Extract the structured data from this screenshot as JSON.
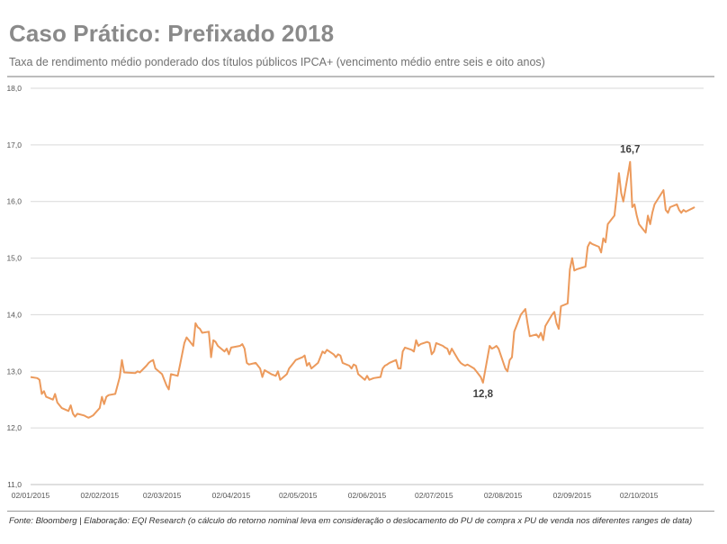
{
  "title": "Caso Prático: Prefixado 2018",
  "subtitle": "Taxa de rendimento médio ponderado dos títulos públicos IPCA+ (vencimento médio entre seis e oito anos)",
  "footnote": "Fonte: Bloomberg | Elaboração: EQI Research (o cálculo do retorno nominal leva em consideração o deslocamento do PU de compra x PU de venda nos diferentes ranges de data)",
  "colors": {
    "line": "#ec9a5c",
    "grid": "#d9d9d9",
    "axis": "#bfbfbf"
  },
  "chart_data": {
    "type": "line",
    "title": "Caso Prático: Prefixado 2018",
    "xlabel": "",
    "ylabel": "",
    "xlim": [
      "2015-01-02",
      "2015-10-31"
    ],
    "ylim": [
      11.0,
      18.0
    ],
    "grid": true,
    "legend": "none",
    "y_ticks": [
      "11,0",
      "12,0",
      "13,0",
      "14,0",
      "15,0",
      "16,0",
      "17,0",
      "18,0"
    ],
    "x_ticks": [
      {
        "date": "2015-01-02",
        "label": "02/01/2015"
      },
      {
        "date": "2015-02-02",
        "label": "02/02/2015"
      },
      {
        "date": "2015-03-02",
        "label": "02/03/2015"
      },
      {
        "date": "2015-04-02",
        "label": "02/04/2015"
      },
      {
        "date": "2015-05-02",
        "label": "02/05/2015"
      },
      {
        "date": "2015-06-02",
        "label": "02/06/2015"
      },
      {
        "date": "2015-07-02",
        "label": "02/07/2015"
      },
      {
        "date": "2015-08-02",
        "label": "02/08/2015"
      },
      {
        "date": "2015-09-02",
        "label": "02/09/2015"
      },
      {
        "date": "2015-10-02",
        "label": "02/10/2015"
      }
    ],
    "annotations": [
      {
        "date": "2015-07-24",
        "value": 12.8,
        "label": "12,8",
        "position": "below"
      },
      {
        "date": "2015-09-28",
        "value": 16.7,
        "label": "16,7",
        "position": "above"
      }
    ],
    "series": [
      {
        "points": [
          [
            "2015-01-02",
            12.9
          ],
          [
            "2015-01-05",
            12.88
          ],
          [
            "2015-01-06",
            12.85
          ],
          [
            "2015-01-07",
            12.6
          ],
          [
            "2015-01-08",
            12.65
          ],
          [
            "2015-01-09",
            12.55
          ],
          [
            "2015-01-12",
            12.5
          ],
          [
            "2015-01-13",
            12.6
          ],
          [
            "2015-01-14",
            12.45
          ],
          [
            "2015-01-15",
            12.4
          ],
          [
            "2015-01-16",
            12.35
          ],
          [
            "2015-01-19",
            12.3
          ],
          [
            "2015-01-20",
            12.4
          ],
          [
            "2015-01-21",
            12.25
          ],
          [
            "2015-01-22",
            12.2
          ],
          [
            "2015-01-23",
            12.25
          ],
          [
            "2015-01-26",
            12.22
          ],
          [
            "2015-01-27",
            12.2
          ],
          [
            "2015-01-28",
            12.18
          ],
          [
            "2015-01-29",
            12.2
          ],
          [
            "2015-01-30",
            12.22
          ],
          [
            "2015-02-02",
            12.35
          ],
          [
            "2015-02-03",
            12.55
          ],
          [
            "2015-02-04",
            12.42
          ],
          [
            "2015-02-05",
            12.55
          ],
          [
            "2015-02-06",
            12.58
          ],
          [
            "2015-02-09",
            12.6
          ],
          [
            "2015-02-10",
            12.75
          ],
          [
            "2015-02-11",
            12.9
          ],
          [
            "2015-02-12",
            13.2
          ],
          [
            "2015-02-13",
            12.98
          ],
          [
            "2015-02-18",
            12.97
          ],
          [
            "2015-02-19",
            13.0
          ],
          [
            "2015-02-20",
            12.98
          ],
          [
            "2015-02-23",
            13.1
          ],
          [
            "2015-02-24",
            13.15
          ],
          [
            "2015-02-25",
            13.18
          ],
          [
            "2015-02-26",
            13.2
          ],
          [
            "2015-02-27",
            13.05
          ],
          [
            "2015-03-02",
            12.95
          ],
          [
            "2015-03-03",
            12.85
          ],
          [
            "2015-03-04",
            12.75
          ],
          [
            "2015-03-05",
            12.68
          ],
          [
            "2015-03-06",
            12.95
          ],
          [
            "2015-03-09",
            12.92
          ],
          [
            "2015-03-10",
            13.1
          ],
          [
            "2015-03-11",
            13.3
          ],
          [
            "2015-03-12",
            13.5
          ],
          [
            "2015-03-13",
            13.6
          ],
          [
            "2015-03-16",
            13.45
          ],
          [
            "2015-03-17",
            13.85
          ],
          [
            "2015-03-18",
            13.78
          ],
          [
            "2015-03-19",
            13.75
          ],
          [
            "2015-03-20",
            13.68
          ],
          [
            "2015-03-23",
            13.7
          ],
          [
            "2015-03-24",
            13.25
          ],
          [
            "2015-03-25",
            13.55
          ],
          [
            "2015-03-26",
            13.52
          ],
          [
            "2015-03-27",
            13.45
          ],
          [
            "2015-03-30",
            13.35
          ],
          [
            "2015-03-31",
            13.4
          ],
          [
            "2015-04-01",
            13.3
          ],
          [
            "2015-04-02",
            13.42
          ],
          [
            "2015-04-06",
            13.45
          ],
          [
            "2015-04-07",
            13.48
          ],
          [
            "2015-04-08",
            13.4
          ],
          [
            "2015-04-09",
            13.15
          ],
          [
            "2015-04-10",
            13.12
          ],
          [
            "2015-04-13",
            13.15
          ],
          [
            "2015-04-14",
            13.1
          ],
          [
            "2015-04-15",
            13.05
          ],
          [
            "2015-04-16",
            12.9
          ],
          [
            "2015-04-17",
            13.02
          ],
          [
            "2015-04-20",
            12.95
          ],
          [
            "2015-04-22",
            12.92
          ],
          [
            "2015-04-23",
            13.0
          ],
          [
            "2015-04-24",
            12.85
          ],
          [
            "2015-04-27",
            12.95
          ],
          [
            "2015-04-28",
            13.05
          ],
          [
            "2015-04-29",
            13.1
          ],
          [
            "2015-04-30",
            13.15
          ],
          [
            "2015-05-01",
            13.2
          ],
          [
            "2015-05-04",
            13.25
          ],
          [
            "2015-05-05",
            13.28
          ],
          [
            "2015-05-06",
            13.1
          ],
          [
            "2015-05-07",
            13.15
          ],
          [
            "2015-05-08",
            13.05
          ],
          [
            "2015-05-11",
            13.15
          ],
          [
            "2015-05-12",
            13.25
          ],
          [
            "2015-05-13",
            13.35
          ],
          [
            "2015-05-14",
            13.32
          ],
          [
            "2015-05-15",
            13.38
          ],
          [
            "2015-05-18",
            13.3
          ],
          [
            "2015-05-19",
            13.25
          ],
          [
            "2015-05-20",
            13.3
          ],
          [
            "2015-05-21",
            13.28
          ],
          [
            "2015-05-22",
            13.15
          ],
          [
            "2015-05-25",
            13.1
          ],
          [
            "2015-05-26",
            13.05
          ],
          [
            "2015-05-27",
            13.12
          ],
          [
            "2015-05-28",
            13.1
          ],
          [
            "2015-05-29",
            12.95
          ],
          [
            "2015-06-01",
            12.85
          ],
          [
            "2015-06-02",
            12.92
          ],
          [
            "2015-06-03",
            12.85
          ],
          [
            "2015-06-05",
            12.88
          ],
          [
            "2015-06-08",
            12.9
          ],
          [
            "2015-06-09",
            13.05
          ],
          [
            "2015-06-10",
            13.1
          ],
          [
            "2015-06-11",
            13.12
          ],
          [
            "2015-06-12",
            13.15
          ],
          [
            "2015-06-15",
            13.2
          ],
          [
            "2015-06-16",
            13.05
          ],
          [
            "2015-06-17",
            13.05
          ],
          [
            "2015-06-18",
            13.35
          ],
          [
            "2015-06-19",
            13.42
          ],
          [
            "2015-06-22",
            13.38
          ],
          [
            "2015-06-23",
            13.35
          ],
          [
            "2015-06-24",
            13.55
          ],
          [
            "2015-06-25",
            13.45
          ],
          [
            "2015-06-26",
            13.48
          ],
          [
            "2015-06-29",
            13.52
          ],
          [
            "2015-06-30",
            13.5
          ],
          [
            "2015-07-01",
            13.3
          ],
          [
            "2015-07-02",
            13.35
          ],
          [
            "2015-07-03",
            13.5
          ],
          [
            "2015-07-06",
            13.45
          ],
          [
            "2015-07-07",
            13.42
          ],
          [
            "2015-07-08",
            13.4
          ],
          [
            "2015-07-09",
            13.3
          ],
          [
            "2015-07-10",
            13.4
          ],
          [
            "2015-07-13",
            13.2
          ],
          [
            "2015-07-14",
            13.15
          ],
          [
            "2015-07-15",
            13.12
          ],
          [
            "2015-07-16",
            13.1
          ],
          [
            "2015-07-17",
            13.12
          ],
          [
            "2015-07-20",
            13.05
          ],
          [
            "2015-07-21",
            13.0
          ],
          [
            "2015-07-22",
            12.95
          ],
          [
            "2015-07-23",
            12.9
          ],
          [
            "2015-07-24",
            12.8
          ],
          [
            "2015-07-27",
            13.45
          ],
          [
            "2015-07-28",
            13.4
          ],
          [
            "2015-07-29",
            13.42
          ],
          [
            "2015-07-30",
            13.45
          ],
          [
            "2015-07-31",
            13.4
          ],
          [
            "2015-08-03",
            13.05
          ],
          [
            "2015-08-04",
            13.0
          ],
          [
            "2015-08-05",
            13.2
          ],
          [
            "2015-08-06",
            13.25
          ],
          [
            "2015-08-07",
            13.7
          ],
          [
            "2015-08-10",
            14.0
          ],
          [
            "2015-08-11",
            14.05
          ],
          [
            "2015-08-12",
            14.1
          ],
          [
            "2015-08-13",
            13.85
          ],
          [
            "2015-08-14",
            13.62
          ],
          [
            "2015-08-17",
            13.65
          ],
          [
            "2015-08-18",
            13.6
          ],
          [
            "2015-08-19",
            13.68
          ],
          [
            "2015-08-20",
            13.55
          ],
          [
            "2015-08-21",
            13.8
          ],
          [
            "2015-08-24",
            14.0
          ],
          [
            "2015-08-25",
            14.05
          ],
          [
            "2015-08-26",
            13.85
          ],
          [
            "2015-08-27",
            13.75
          ],
          [
            "2015-08-28",
            14.15
          ],
          [
            "2015-08-31",
            14.2
          ],
          [
            "2015-09-01",
            14.8
          ],
          [
            "2015-09-02",
            15.0
          ],
          [
            "2015-09-03",
            14.78
          ],
          [
            "2015-09-04",
            14.8
          ],
          [
            "2015-09-08",
            14.85
          ],
          [
            "2015-09-09",
            15.2
          ],
          [
            "2015-09-10",
            15.28
          ],
          [
            "2015-09-11",
            15.25
          ],
          [
            "2015-09-14",
            15.2
          ],
          [
            "2015-09-15",
            15.1
          ],
          [
            "2015-09-16",
            15.35
          ],
          [
            "2015-09-17",
            15.28
          ],
          [
            "2015-09-18",
            15.6
          ],
          [
            "2015-09-21",
            15.75
          ],
          [
            "2015-09-22",
            16.1
          ],
          [
            "2015-09-23",
            16.5
          ],
          [
            "2015-09-24",
            16.15
          ],
          [
            "2015-09-25",
            16.0
          ],
          [
            "2015-09-28",
            16.7
          ],
          [
            "2015-09-29",
            15.9
          ],
          [
            "2015-09-30",
            15.95
          ],
          [
            "2015-10-01",
            15.75
          ],
          [
            "2015-10-02",
            15.6
          ],
          [
            "2015-10-05",
            15.45
          ],
          [
            "2015-10-06",
            15.75
          ],
          [
            "2015-10-07",
            15.6
          ],
          [
            "2015-10-08",
            15.8
          ],
          [
            "2015-10-09",
            15.95
          ],
          [
            "2015-10-13",
            16.2
          ],
          [
            "2015-10-14",
            15.85
          ],
          [
            "2015-10-15",
            15.8
          ],
          [
            "2015-10-16",
            15.9
          ],
          [
            "2015-10-19",
            15.95
          ],
          [
            "2015-10-20",
            15.85
          ],
          [
            "2015-10-21",
            15.8
          ],
          [
            "2015-10-22",
            15.85
          ],
          [
            "2015-10-23",
            15.82
          ],
          [
            "2015-10-26",
            15.88
          ],
          [
            "2015-10-27",
            15.9
          ]
        ]
      }
    ]
  }
}
